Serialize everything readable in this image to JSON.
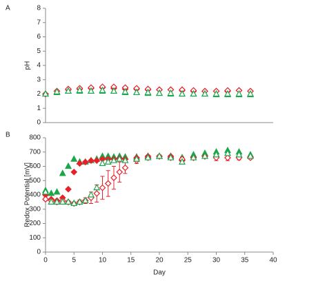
{
  "chart_data": [
    {
      "type": "scatter",
      "label": "A",
      "ylabel": "pH",
      "ylim": [
        0,
        8
      ],
      "yticks": [
        0,
        1,
        2,
        3,
        4,
        5,
        6,
        7,
        8
      ],
      "xlim": [
        0,
        40
      ],
      "series": [
        {
          "color": "#e8202a",
          "marker": "diamond",
          "filled": true,
          "x": [
            0,
            2,
            4,
            6,
            8,
            10,
            12,
            14,
            16,
            18,
            20,
            22,
            24,
            26,
            28,
            30,
            32,
            34,
            36
          ],
          "values": [
            2.0,
            2.2,
            2.3,
            2.35,
            2.4,
            2.45,
            2.4,
            2.35,
            2.35,
            2.3,
            2.3,
            2.3,
            2.25,
            2.2,
            2.2,
            2.2,
            2.2,
            2.25,
            2.2
          ]
        },
        {
          "color": "#e8202a",
          "marker": "diamond",
          "filled": false,
          "x": [
            0,
            2,
            4,
            6,
            8,
            10,
            12,
            14,
            16,
            18,
            20,
            22,
            24,
            26,
            28,
            30,
            32,
            34,
            36
          ],
          "values": [
            2.0,
            2.2,
            2.35,
            2.4,
            2.45,
            2.5,
            2.5,
            2.45,
            2.4,
            2.35,
            2.3,
            2.3,
            2.3,
            2.25,
            2.2,
            2.2,
            2.25,
            2.25,
            2.2
          ]
        },
        {
          "color": "#1aa64a",
          "marker": "triangle",
          "filled": true,
          "x": [
            0,
            2,
            4,
            6,
            8,
            10,
            12,
            14,
            16,
            18,
            20,
            22,
            24,
            26,
            28,
            30,
            32,
            34,
            36
          ],
          "values": [
            2.0,
            2.1,
            2.2,
            2.2,
            2.2,
            2.2,
            2.2,
            2.1,
            2.1,
            2.05,
            2.05,
            2.0,
            2.0,
            2.0,
            2.0,
            1.95,
            1.95,
            1.95,
            1.95
          ]
        },
        {
          "color": "#1aa64a",
          "marker": "triangle",
          "filled": false,
          "x": [
            0,
            2,
            4,
            6,
            8,
            10,
            12,
            14,
            16,
            18,
            20,
            22,
            24,
            26,
            28,
            30,
            32,
            34,
            36
          ],
          "values": [
            2.0,
            2.15,
            2.2,
            2.25,
            2.2,
            2.25,
            2.2,
            2.15,
            2.1,
            2.1,
            2.05,
            2.05,
            2.0,
            2.0,
            2.0,
            2.0,
            2.0,
            2.0,
            2.0
          ]
        }
      ]
    },
    {
      "type": "scatter",
      "label": "B",
      "ylabel": "Redox Potential [mV]",
      "xlabel": "Day",
      "ylim": [
        0,
        800
      ],
      "yticks": [
        0,
        100,
        200,
        300,
        400,
        500,
        600,
        700,
        800
      ],
      "xlim": [
        0,
        40
      ],
      "xticks": [
        0,
        5,
        10,
        15,
        20,
        25,
        30,
        35,
        40
      ],
      "series": [
        {
          "color": "#1aa64a",
          "marker": "triangle",
          "filled": true,
          "x": [
            0,
            1,
            2,
            3,
            4,
            5,
            6,
            7,
            8,
            9,
            10,
            11,
            12,
            13,
            14,
            16,
            18,
            20,
            22,
            24,
            26,
            28,
            30,
            32,
            34,
            36
          ],
          "values": [
            430,
            410,
            420,
            550,
            600,
            650,
            630,
            630,
            640,
            650,
            670,
            670,
            665,
            670,
            665,
            665,
            670,
            670,
            670,
            660,
            680,
            690,
            700,
            710,
            700,
            680
          ]
        },
        {
          "color": "#e8202a",
          "marker": "diamond",
          "filled": true,
          "x": [
            0,
            1,
            2,
            3,
            4,
            5,
            6,
            7,
            8,
            9,
            10,
            11,
            12,
            13,
            14,
            16,
            18,
            20,
            22,
            24,
            26,
            28,
            30,
            32,
            34,
            36
          ],
          "values": [
            400,
            370,
            360,
            380,
            440,
            560,
            620,
            630,
            640,
            640,
            650,
            650,
            650,
            655,
            650,
            660,
            670,
            670,
            670,
            640,
            660,
            670,
            670,
            660,
            660,
            665
          ]
        },
        {
          "color": "#e8202a",
          "marker": "diamond",
          "filled": false,
          "x": [
            0,
            1,
            2,
            3,
            4,
            5,
            6,
            7,
            8,
            9,
            10,
            11,
            12,
            13,
            14,
            16,
            18,
            20,
            22,
            24,
            26,
            28,
            30,
            32,
            34,
            36
          ],
          "values": [
            370,
            360,
            350,
            360,
            350,
            340,
            350,
            360,
            380,
            410,
            450,
            480,
            520,
            560,
            590,
            640,
            660,
            670,
            660,
            650,
            660,
            670,
            660,
            660,
            660,
            660
          ],
          "errors": [
            10,
            10,
            10,
            10,
            10,
            10,
            15,
            20,
            40,
            60,
            80,
            90,
            80,
            70,
            40,
            20,
            10,
            10,
            10,
            15,
            10,
            10,
            20,
            20,
            15,
            10
          ]
        },
        {
          "color": "#1aa64a",
          "marker": "triangle",
          "filled": false,
          "x": [
            0,
            1,
            2,
            3,
            4,
            5,
            6,
            7,
            8,
            9,
            10,
            11,
            12,
            13,
            14,
            16,
            18,
            20,
            22,
            24,
            26,
            28,
            30,
            32,
            34,
            36
          ],
          "values": [
            420,
            350,
            350,
            350,
            350,
            340,
            350,
            360,
            400,
            450,
            620,
            630,
            640,
            650,
            640,
            650,
            660,
            670,
            660,
            630,
            660,
            670,
            680,
            690,
            680,
            670
          ]
        }
      ]
    }
  ]
}
